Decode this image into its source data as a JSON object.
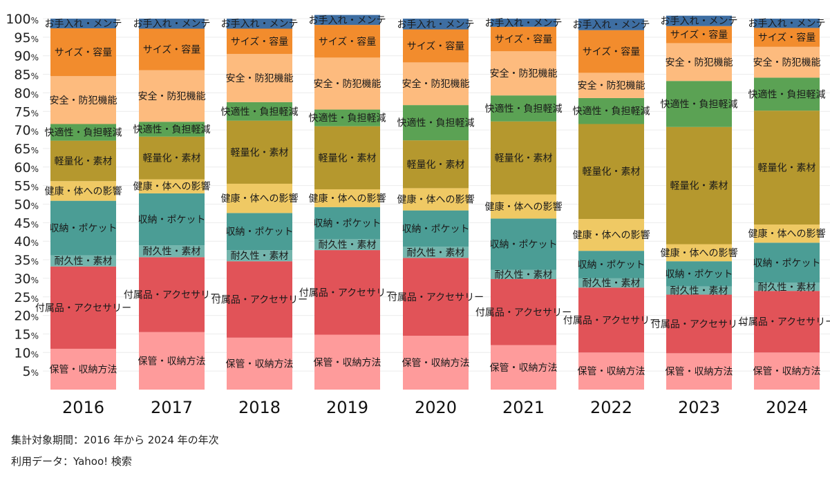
{
  "chart_data": {
    "type": "bar",
    "stacked": true,
    "normalized": true,
    "ylim": [
      0,
      100
    ],
    "y_ticks": [
      "5%",
      "10%",
      "15%",
      "20%",
      "25%",
      "30%",
      "35%",
      "40%",
      "45%",
      "50%",
      "55%",
      "60%",
      "65%",
      "70%",
      "75%",
      "80%",
      "85%",
      "90%",
      "95%",
      "100%"
    ],
    "grid": true,
    "legend": "none",
    "categories": [
      "2016",
      "2017",
      "2018",
      "2019",
      "2020",
      "2021",
      "2022",
      "2023",
      "2024"
    ],
    "series": [
      {
        "name": "保管・収納方法",
        "color": "#fe9b9b",
        "values": [
          11.0,
          15.5,
          14.0,
          14.8,
          14.5,
          12.0,
          10.0,
          9.8,
          10.0
        ]
      },
      {
        "name": "付属品・アクセサリー",
        "color": "#e15358",
        "values": [
          22.2,
          20.2,
          20.6,
          22.8,
          21.0,
          17.8,
          17.5,
          15.8,
          16.6
        ]
      },
      {
        "name": "耐久性・素材",
        "color": "#74b5ad",
        "values": [
          3.0,
          3.2,
          3.0,
          3.0,
          3.0,
          2.5,
          2.5,
          2.2,
          2.2
        ]
      },
      {
        "name": "収納・ポケット",
        "color": "#4b9d95",
        "values": [
          14.7,
          14.0,
          10.0,
          8.6,
          9.8,
          13.8,
          7.4,
          6.8,
          10.8
        ]
      },
      {
        "name": "健康・体への影響",
        "color": "#efc964",
        "values": [
          5.3,
          3.8,
          7.9,
          4.8,
          6.0,
          6.5,
          8.6,
          4.6,
          4.9
        ]
      },
      {
        "name": "軽量化・素材",
        "color": "#b5982e",
        "values": [
          10.9,
          11.5,
          17.0,
          17.0,
          12.9,
          19.7,
          25.6,
          31.6,
          30.7
        ]
      },
      {
        "name": "快適性・負担軽減",
        "color": "#5ba254",
        "values": [
          4.5,
          4.0,
          5.0,
          4.5,
          9.5,
          7.0,
          7.0,
          12.4,
          8.9
        ]
      },
      {
        "name": "安全・防犯機能",
        "color": "#fdbb7e",
        "values": [
          12.9,
          13.9,
          13.0,
          14.0,
          11.5,
          11.9,
          6.8,
          10.2,
          8.3
        ]
      },
      {
        "name": "サイズ・容量",
        "color": "#f28c2d",
        "values": [
          12.9,
          11.2,
          6.8,
          8.8,
          8.9,
          6.6,
          11.5,
          4.6,
          5.1
        ]
      },
      {
        "name": "お手入れ・メンテ",
        "color": "#3e6ea2",
        "values": [
          2.6,
          2.7,
          2.7,
          2.7,
          2.9,
          2.2,
          3.1,
          2.8,
          2.5
        ]
      }
    ]
  },
  "notes": {
    "period": "集計対象期間：2016 年から 2024 年の年次",
    "source": "利用データ：Yahoo! 検索"
  }
}
